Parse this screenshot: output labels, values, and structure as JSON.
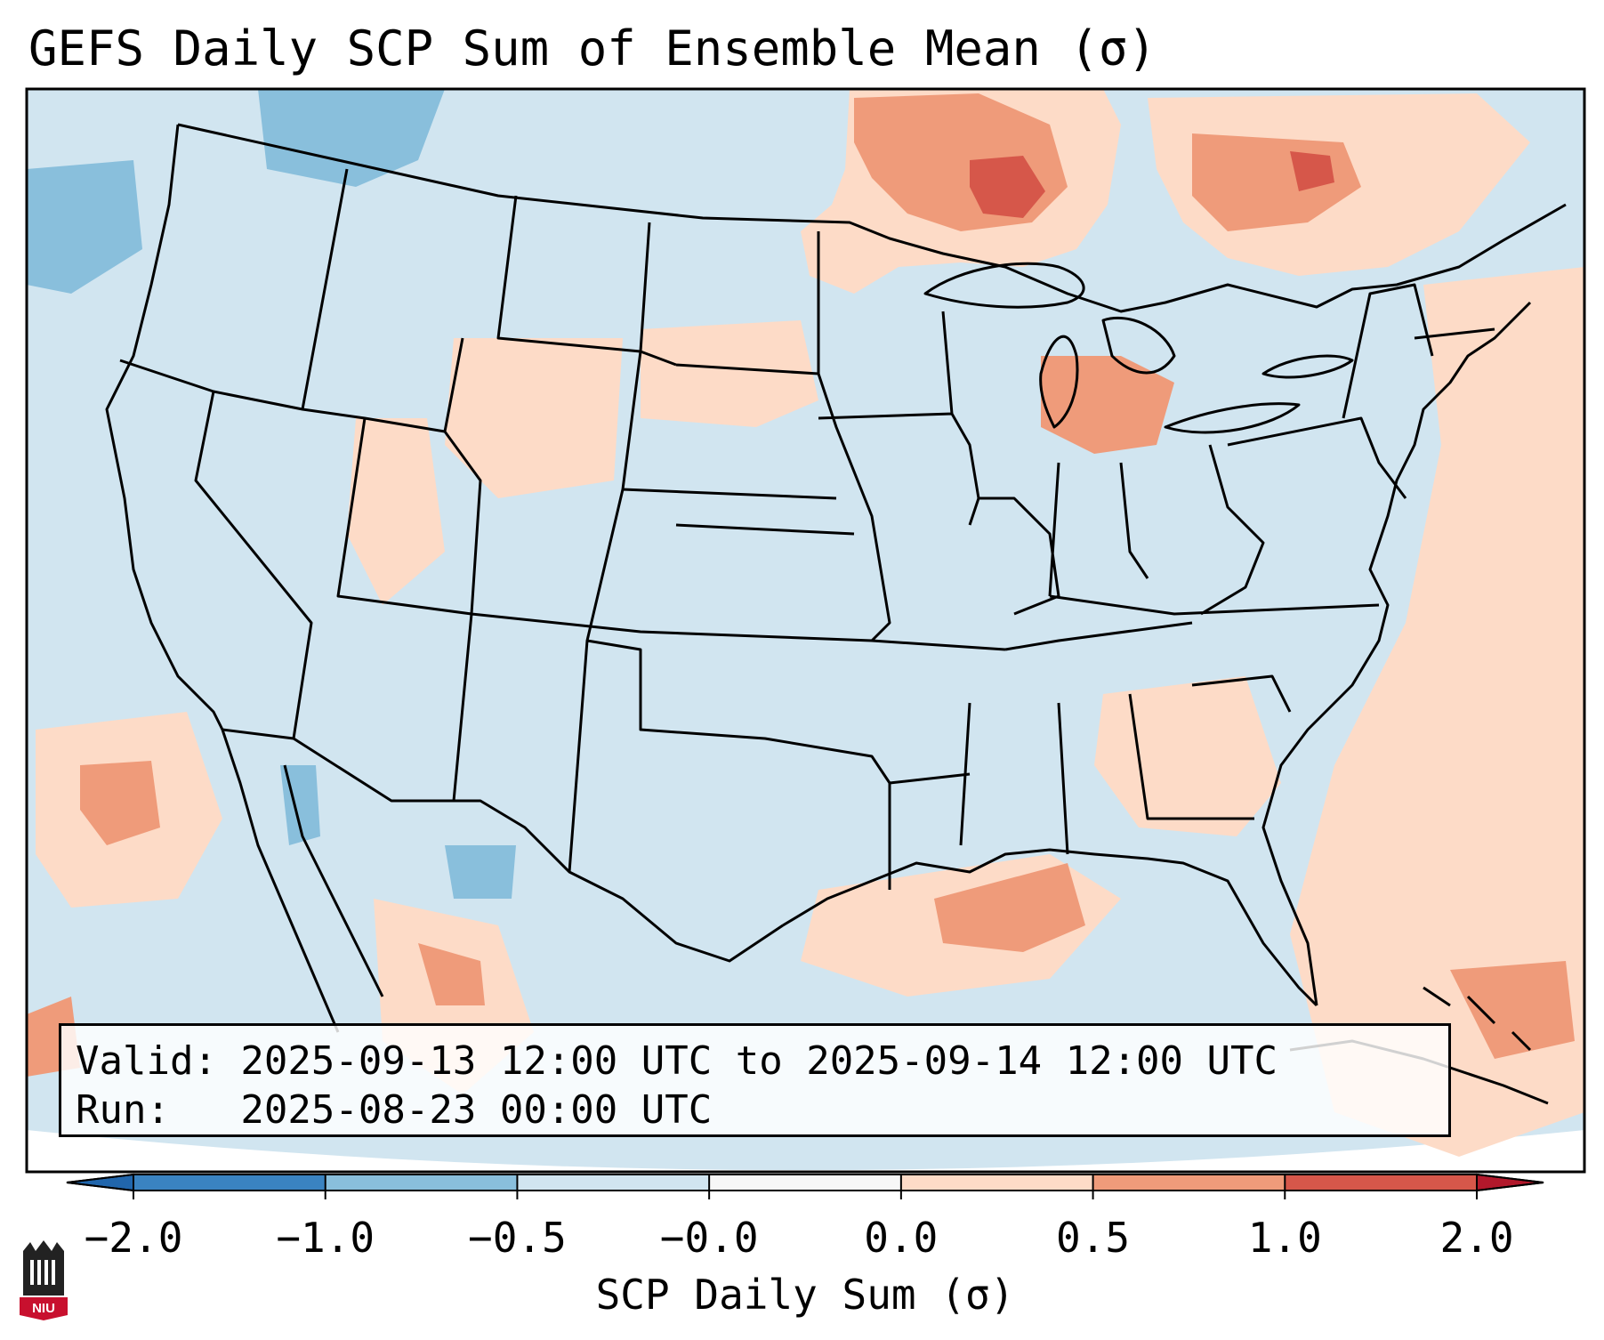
{
  "title": "GEFS Daily SCP Sum of Ensemble Mean (σ)",
  "info": {
    "valid_line": "Valid: 2025-09-13 12:00 UTC to 2025-09-14 12:00 UTC",
    "run_line": "Run:   2025-08-23 00:00 UTC"
  },
  "colorbar": {
    "label": "SCP Daily Sum (σ)",
    "ticks": [
      "−2.0",
      "−1.0",
      "−0.5",
      "−0.0",
      "0.0",
      "0.5",
      "1.0",
      "2.0"
    ],
    "colors": [
      "#3a83c1",
      "#89bfdc",
      "#d1e5f0",
      "#f7f7f7",
      "#fddbc7",
      "#ef9b7a",
      "#d6574a",
      "#b2182b"
    ],
    "extend_low_color": "#2166ac",
    "extend_high_color": "#b2182b"
  },
  "map": {
    "background_color": "#d1e5f0",
    "border_color": "#000000",
    "anomaly_regions": [
      {
        "region": "Upper Midwest / Ontario",
        "level": "1.0 to 2.0"
      },
      {
        "region": "Quebec",
        "level": "1.0 to 2.0"
      },
      {
        "region": "Michigan",
        "level": "0.5 to 1.0"
      },
      {
        "region": "Northern Gulf of Mexico",
        "level": "0.5 to 1.0"
      },
      {
        "region": "Western Atlantic",
        "level": "0.0 to 0.5"
      },
      {
        "region": "Pacific Northwest",
        "level": "-1.0 to -0.5"
      },
      {
        "region": "Eastern Pacific",
        "level": "0.5 to 1.0"
      }
    ]
  },
  "logo": {
    "text": "NIU",
    "color": "#c8102e"
  }
}
